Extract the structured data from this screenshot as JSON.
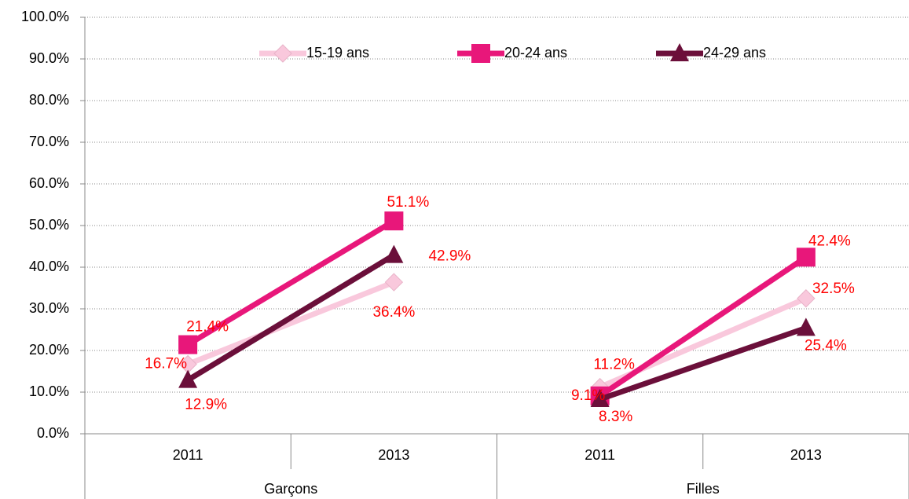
{
  "chart_data": {
    "type": "line",
    "groups": [
      {
        "label": "Garçons",
        "categories": [
          "2011",
          "2013"
        ]
      },
      {
        "label": "Filles",
        "categories": [
          "2011",
          "2013"
        ]
      }
    ],
    "series": [
      {
        "name": "15-19 ans",
        "color": "#f9c8dc",
        "marker": "diamond",
        "values": [
          16.7,
          36.4,
          11.2,
          32.5
        ],
        "value_labels": [
          "16.7%",
          "36.4%",
          "11.2%",
          "32.5%"
        ]
      },
      {
        "name": "20-24 ans",
        "color": "#e8177a",
        "marker": "square",
        "values": [
          21.4,
          51.1,
          9.1,
          42.4
        ],
        "value_labels": [
          "21.4%",
          "51.1%",
          "9.1%",
          "42.4%"
        ]
      },
      {
        "name": "24-29 ans",
        "color": "#6b0f3a",
        "marker": "triangle",
        "values": [
          12.9,
          42.9,
          8.3,
          25.4
        ],
        "value_labels": [
          "12.9%",
          "42.9%",
          "8.3%",
          "25.4%"
        ]
      }
    ],
    "ylim": [
      0,
      100
    ],
    "yticks": [
      {
        "value": 0,
        "label": "0.0%"
      },
      {
        "value": 10,
        "label": "10.0%"
      },
      {
        "value": 20,
        "label": "20.0%"
      },
      {
        "value": 30,
        "label": "30.0%"
      },
      {
        "value": 40,
        "label": "40.0%"
      },
      {
        "value": 50,
        "label": "50.0%"
      },
      {
        "value": 60,
        "label": "60.0%"
      },
      {
        "value": 70,
        "label": "70.0%"
      },
      {
        "value": 80,
        "label": "80.0%"
      },
      {
        "value": 90,
        "label": "90.0%"
      },
      {
        "value": 100,
        "label": "100.0%"
      }
    ],
    "grid": true,
    "legend": "top"
  }
}
